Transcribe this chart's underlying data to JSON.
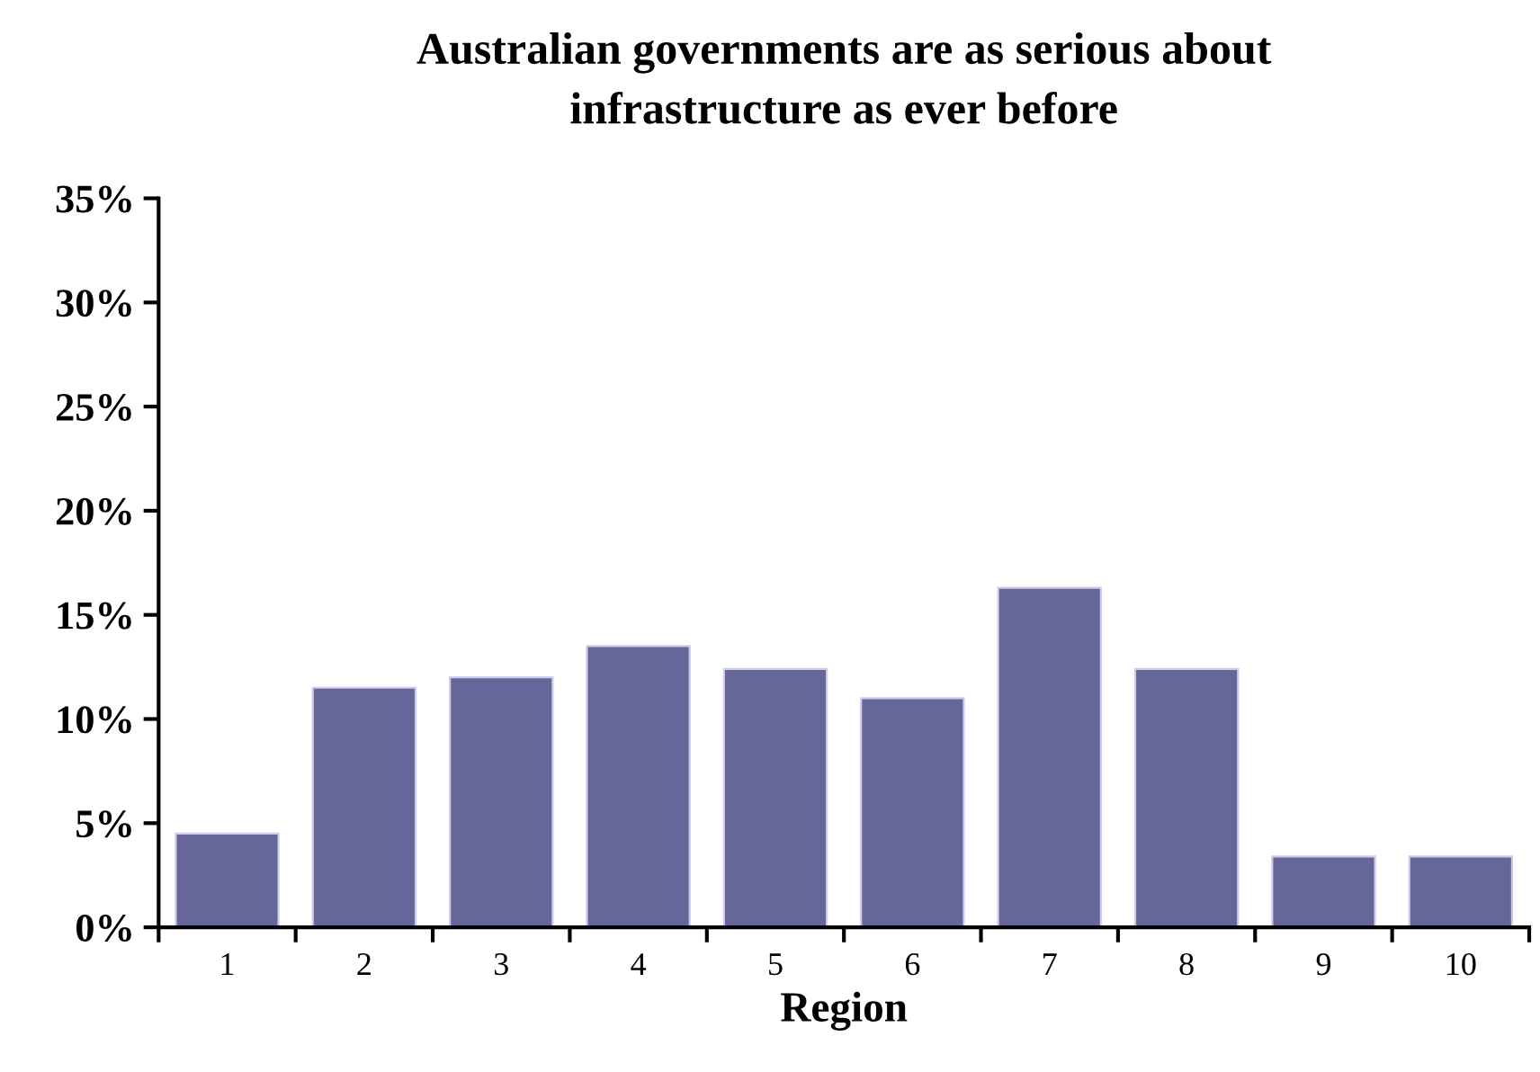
{
  "chart_data": {
    "type": "bar",
    "title": "Australian governments are as serious about\ninfrastructure as ever before",
    "xlabel": "Region",
    "categories": [
      "1",
      "2",
      "3",
      "4",
      "5",
      "6",
      "7",
      "8",
      "9",
      "10"
    ],
    "values": [
      4.5,
      11.5,
      12.0,
      13.5,
      12.4,
      11.0,
      16.3,
      12.4,
      3.4,
      3.4
    ],
    "color": "#666699",
    "ylim": [
      0,
      35
    ],
    "yticks": [
      {
        "value": 0,
        "label": "0%"
      },
      {
        "value": 5,
        "label": "5%"
      },
      {
        "value": 10,
        "label": "10%"
      },
      {
        "value": 15,
        "label": "15%"
      },
      {
        "value": 20,
        "label": "20%"
      },
      {
        "value": 25,
        "label": "25%"
      },
      {
        "value": 30,
        "label": "30%"
      },
      {
        "value": 35,
        "label": "35%"
      }
    ],
    "grid": false
  }
}
